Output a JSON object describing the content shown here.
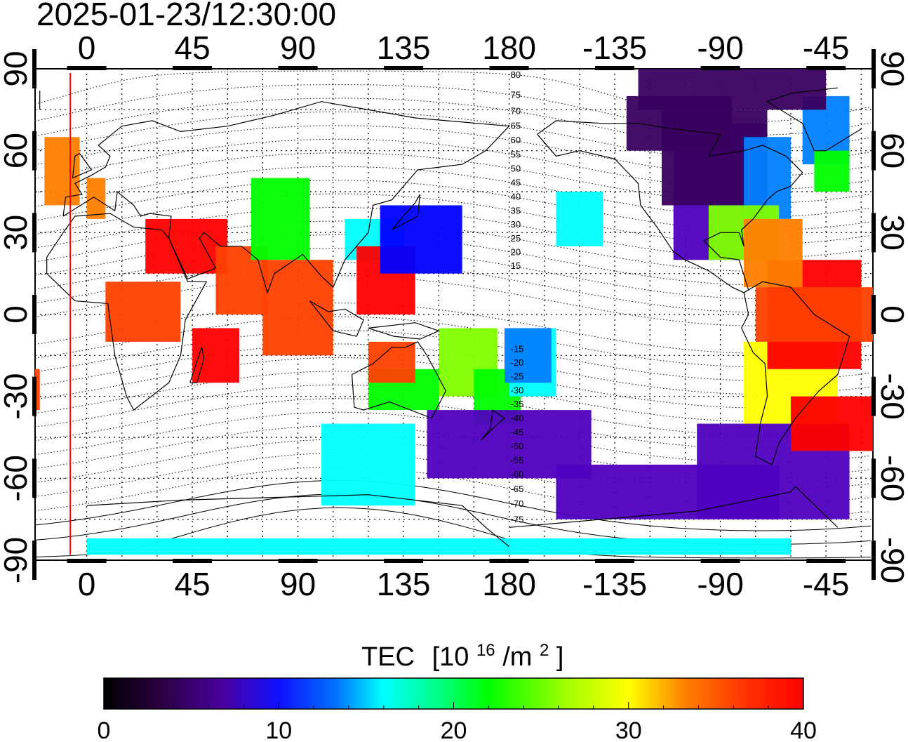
{
  "title": "2025-01-23/12:30:00",
  "map": {
    "lon_ticks": [
      "0",
      "45",
      "90",
      "135",
      "180",
      "-135",
      "-90",
      "-45"
    ],
    "lat_ticks": [
      "90",
      "60",
      "30",
      "0",
      "-30",
      "-60",
      "-90"
    ],
    "lon_range": [
      -22,
      335
    ],
    "lat_range": [
      -90,
      90
    ],
    "terminator_lon": -7,
    "magnetic_latitude_labels": [
      "80",
      "75",
      "70",
      "65",
      "60",
      "55",
      "50",
      "45",
      "40",
      "35",
      "30",
      "25",
      "20",
      "15",
      "-15",
      "-20",
      "-25",
      "-30",
      "-35",
      "-40",
      "-45",
      "-50",
      "-55",
      "-60",
      "-65",
      "-70",
      "-75"
    ],
    "terminator_color": "#ff0000"
  },
  "colorbar": {
    "title_main": "TEC",
    "title_unit_open": "[10",
    "title_unit_exp": "16",
    "title_unit_mid": "/m",
    "title_unit_exp2": "2",
    "title_unit_close": "]",
    "min": 0,
    "max": 40,
    "labels": [
      "0",
      "10",
      "20",
      "30",
      "40"
    ],
    "colormap": [
      "#000000",
      "#3a0060",
      "#5000c0",
      "#0000ff",
      "#0080ff",
      "#00ffff",
      "#00ff80",
      "#00ff00",
      "#80ff00",
      "#ffff00",
      "#ff8000",
      "#ff4000",
      "#ff0000"
    ]
  }
}
